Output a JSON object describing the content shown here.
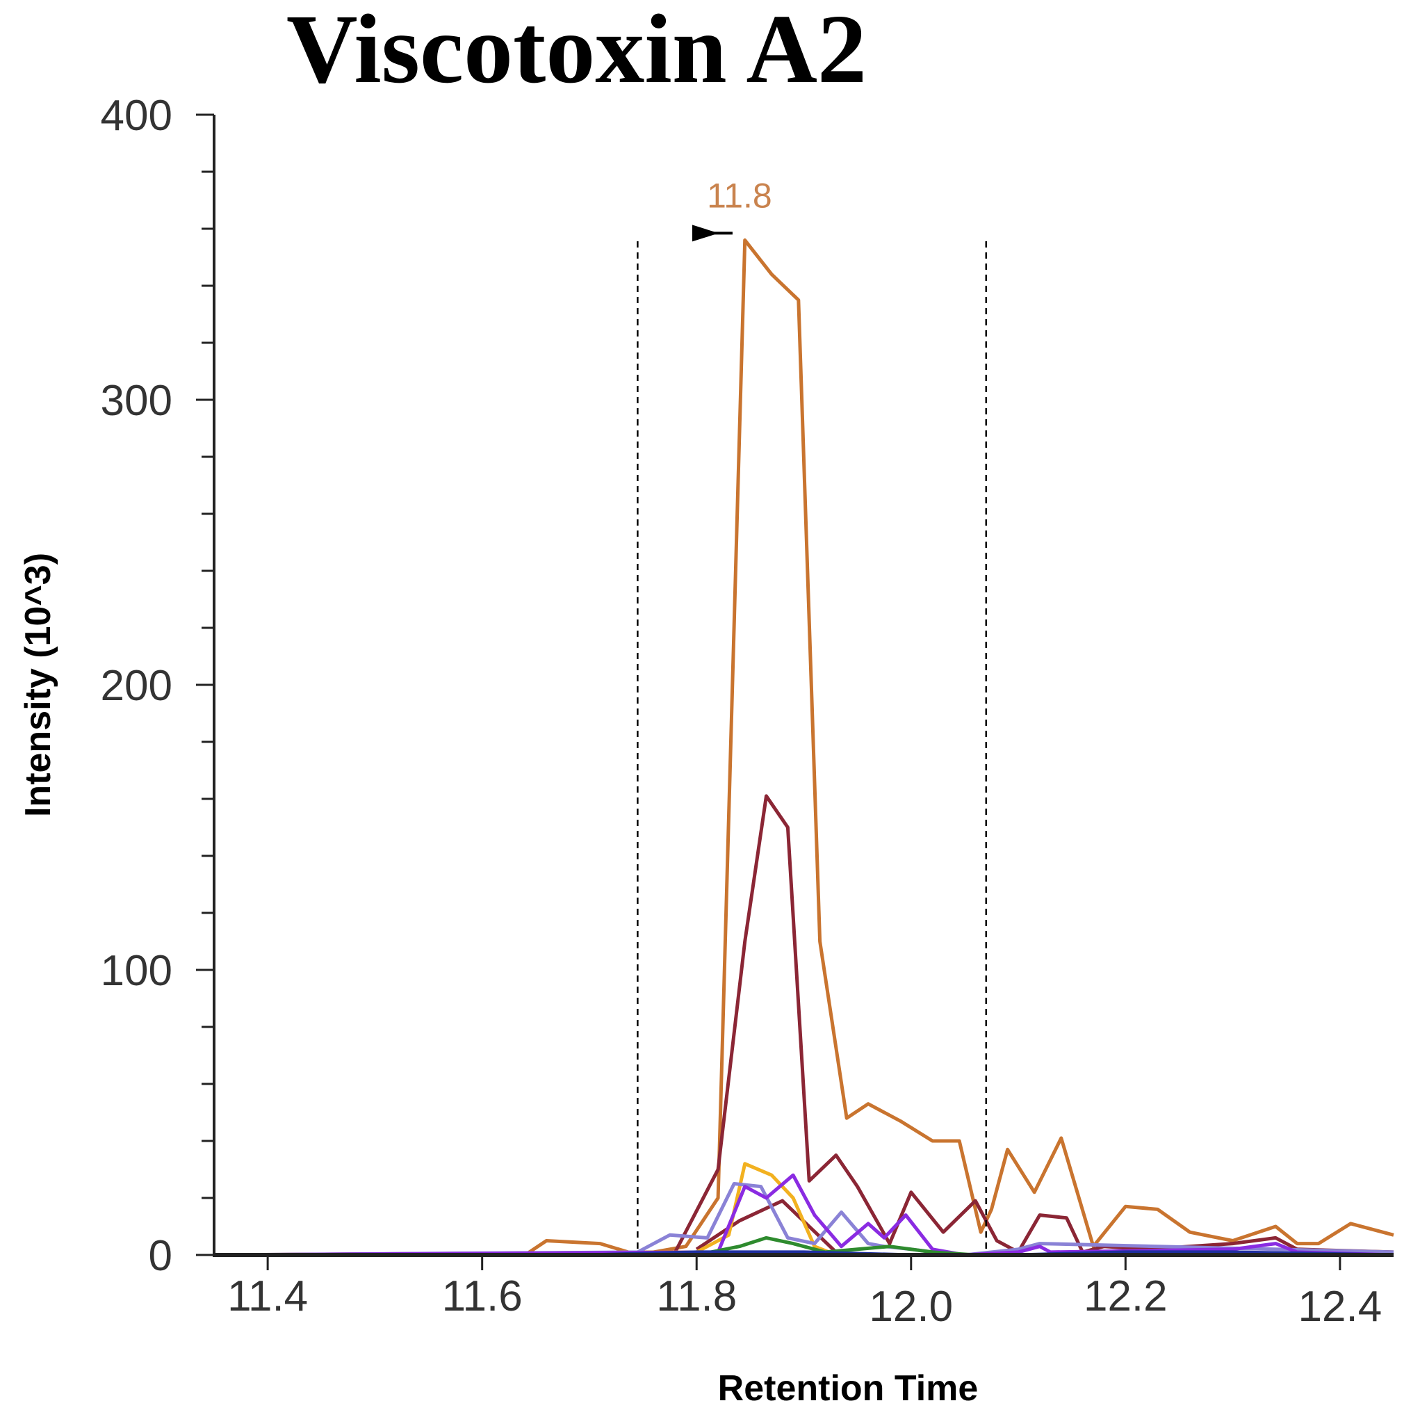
{
  "chart_data": {
    "type": "line",
    "title": "Viscotoxin A2",
    "xlabel": "Retention Time",
    "ylabel": "Intensity (10^3)",
    "xlim": [
      11.35,
      12.45
    ],
    "ylim": [
      0,
      400
    ],
    "x_ticks": [
      11.4,
      11.6,
      11.8,
      12.0,
      12.2,
      12.4
    ],
    "x_tick_labels": [
      "11.4",
      "11.6",
      "11.8",
      "12.0",
      "12.2",
      "12.4"
    ],
    "y_ticks": [
      0,
      100,
      200,
      300,
      400
    ],
    "y_tick_labels": [
      "0",
      "100",
      "200",
      "300",
      "400"
    ],
    "y_minor_step": 20,
    "grid": false,
    "integration_bounds": [
      11.745,
      12.07
    ],
    "peak_annotation": {
      "x": 11.84,
      "y": 356,
      "label": "11.8"
    },
    "series": [
      {
        "name": "orange-trace",
        "color": "#c9742f",
        "x": [
          11.35,
          11.64,
          11.66,
          11.71,
          11.745,
          11.79,
          11.82,
          11.845,
          11.87,
          11.895,
          11.915,
          11.94,
          11.96,
          11.99,
          12.02,
          12.045,
          12.065,
          12.075,
          12.09,
          12.115,
          12.14,
          12.17,
          12.2,
          12.23,
          12.26,
          12.3,
          12.34,
          12.36,
          12.38,
          12.41,
          12.45
        ],
        "y": [
          0,
          0,
          5,
          4,
          0,
          3,
          20,
          356,
          344,
          335,
          110,
          48,
          53,
          47,
          40,
          40,
          8,
          16,
          37,
          22,
          41,
          3,
          17,
          16,
          8,
          5,
          10,
          4,
          4,
          11,
          7
        ]
      },
      {
        "name": "dark-red-trace",
        "color": "#8b2635",
        "x": [
          11.35,
          11.78,
          11.82,
          11.845,
          11.865,
          11.885,
          11.905,
          11.93,
          11.95,
          11.98,
          12.0,
          12.03,
          12.06,
          12.08,
          12.1,
          12.12,
          12.145,
          12.16,
          12.18,
          12.22,
          12.3,
          12.34,
          12.36,
          12.45
        ],
        "y": [
          0,
          1,
          30,
          110,
          161,
          150,
          26,
          35,
          24,
          4,
          22,
          8,
          19,
          5,
          1,
          14,
          13,
          1,
          3,
          2,
          4,
          6,
          2,
          1
        ]
      },
      {
        "name": "maroon-low-trace",
        "color": "#8b2635",
        "x": [
          11.8,
          11.84,
          11.88,
          11.905,
          11.93
        ],
        "y": [
          2,
          12,
          19,
          10,
          1
        ]
      },
      {
        "name": "yellow-trace",
        "color": "#f2b120",
        "x": [
          11.35,
          11.8,
          11.83,
          11.845,
          11.87,
          11.89,
          11.91,
          11.93
        ],
        "y": [
          0,
          1,
          7,
          32,
          28,
          20,
          3,
          0
        ]
      },
      {
        "name": "lavender-trace",
        "color": "#8a82d6",
        "x": [
          11.35,
          11.745,
          11.775,
          11.81,
          11.835,
          11.86,
          11.885,
          11.91,
          11.935,
          11.96,
          11.975,
          12.0,
          12.02,
          12.05,
          12.1,
          12.12,
          12.45
        ],
        "y": [
          0,
          1,
          7,
          6,
          25,
          24,
          6,
          4,
          15,
          4,
          3,
          2,
          1,
          0,
          2,
          4,
          1
        ]
      },
      {
        "name": "purple-trace",
        "color": "#8a2be2",
        "x": [
          11.35,
          11.82,
          11.845,
          11.865,
          11.89,
          11.91,
          11.935,
          11.96,
          11.975,
          11.995,
          12.02,
          12.05,
          12.1,
          12.12,
          12.13,
          12.3,
          12.34,
          12.36,
          12.45
        ],
        "y": [
          0,
          1,
          24,
          20,
          28,
          14,
          3,
          11,
          6,
          14,
          2,
          0,
          1,
          3,
          1,
          2,
          4,
          1,
          0
        ]
      },
      {
        "name": "green-trace",
        "color": "#2e8b2e",
        "x": [
          11.35,
          11.8,
          11.84,
          11.865,
          11.89,
          11.92,
          11.95,
          11.98,
          12.02,
          12.06,
          12.45
        ],
        "y": [
          0,
          0,
          3,
          6,
          4,
          1,
          2,
          3,
          1,
          0,
          0
        ]
      },
      {
        "name": "blue-baseline-trace",
        "color": "#1f2fa0",
        "x": [
          11.35,
          11.7,
          11.8,
          11.9,
          12.0,
          12.1,
          12.2,
          12.3,
          12.45
        ],
        "y": [
          0,
          0,
          1,
          1,
          0,
          0,
          1,
          1,
          0
        ]
      }
    ]
  }
}
